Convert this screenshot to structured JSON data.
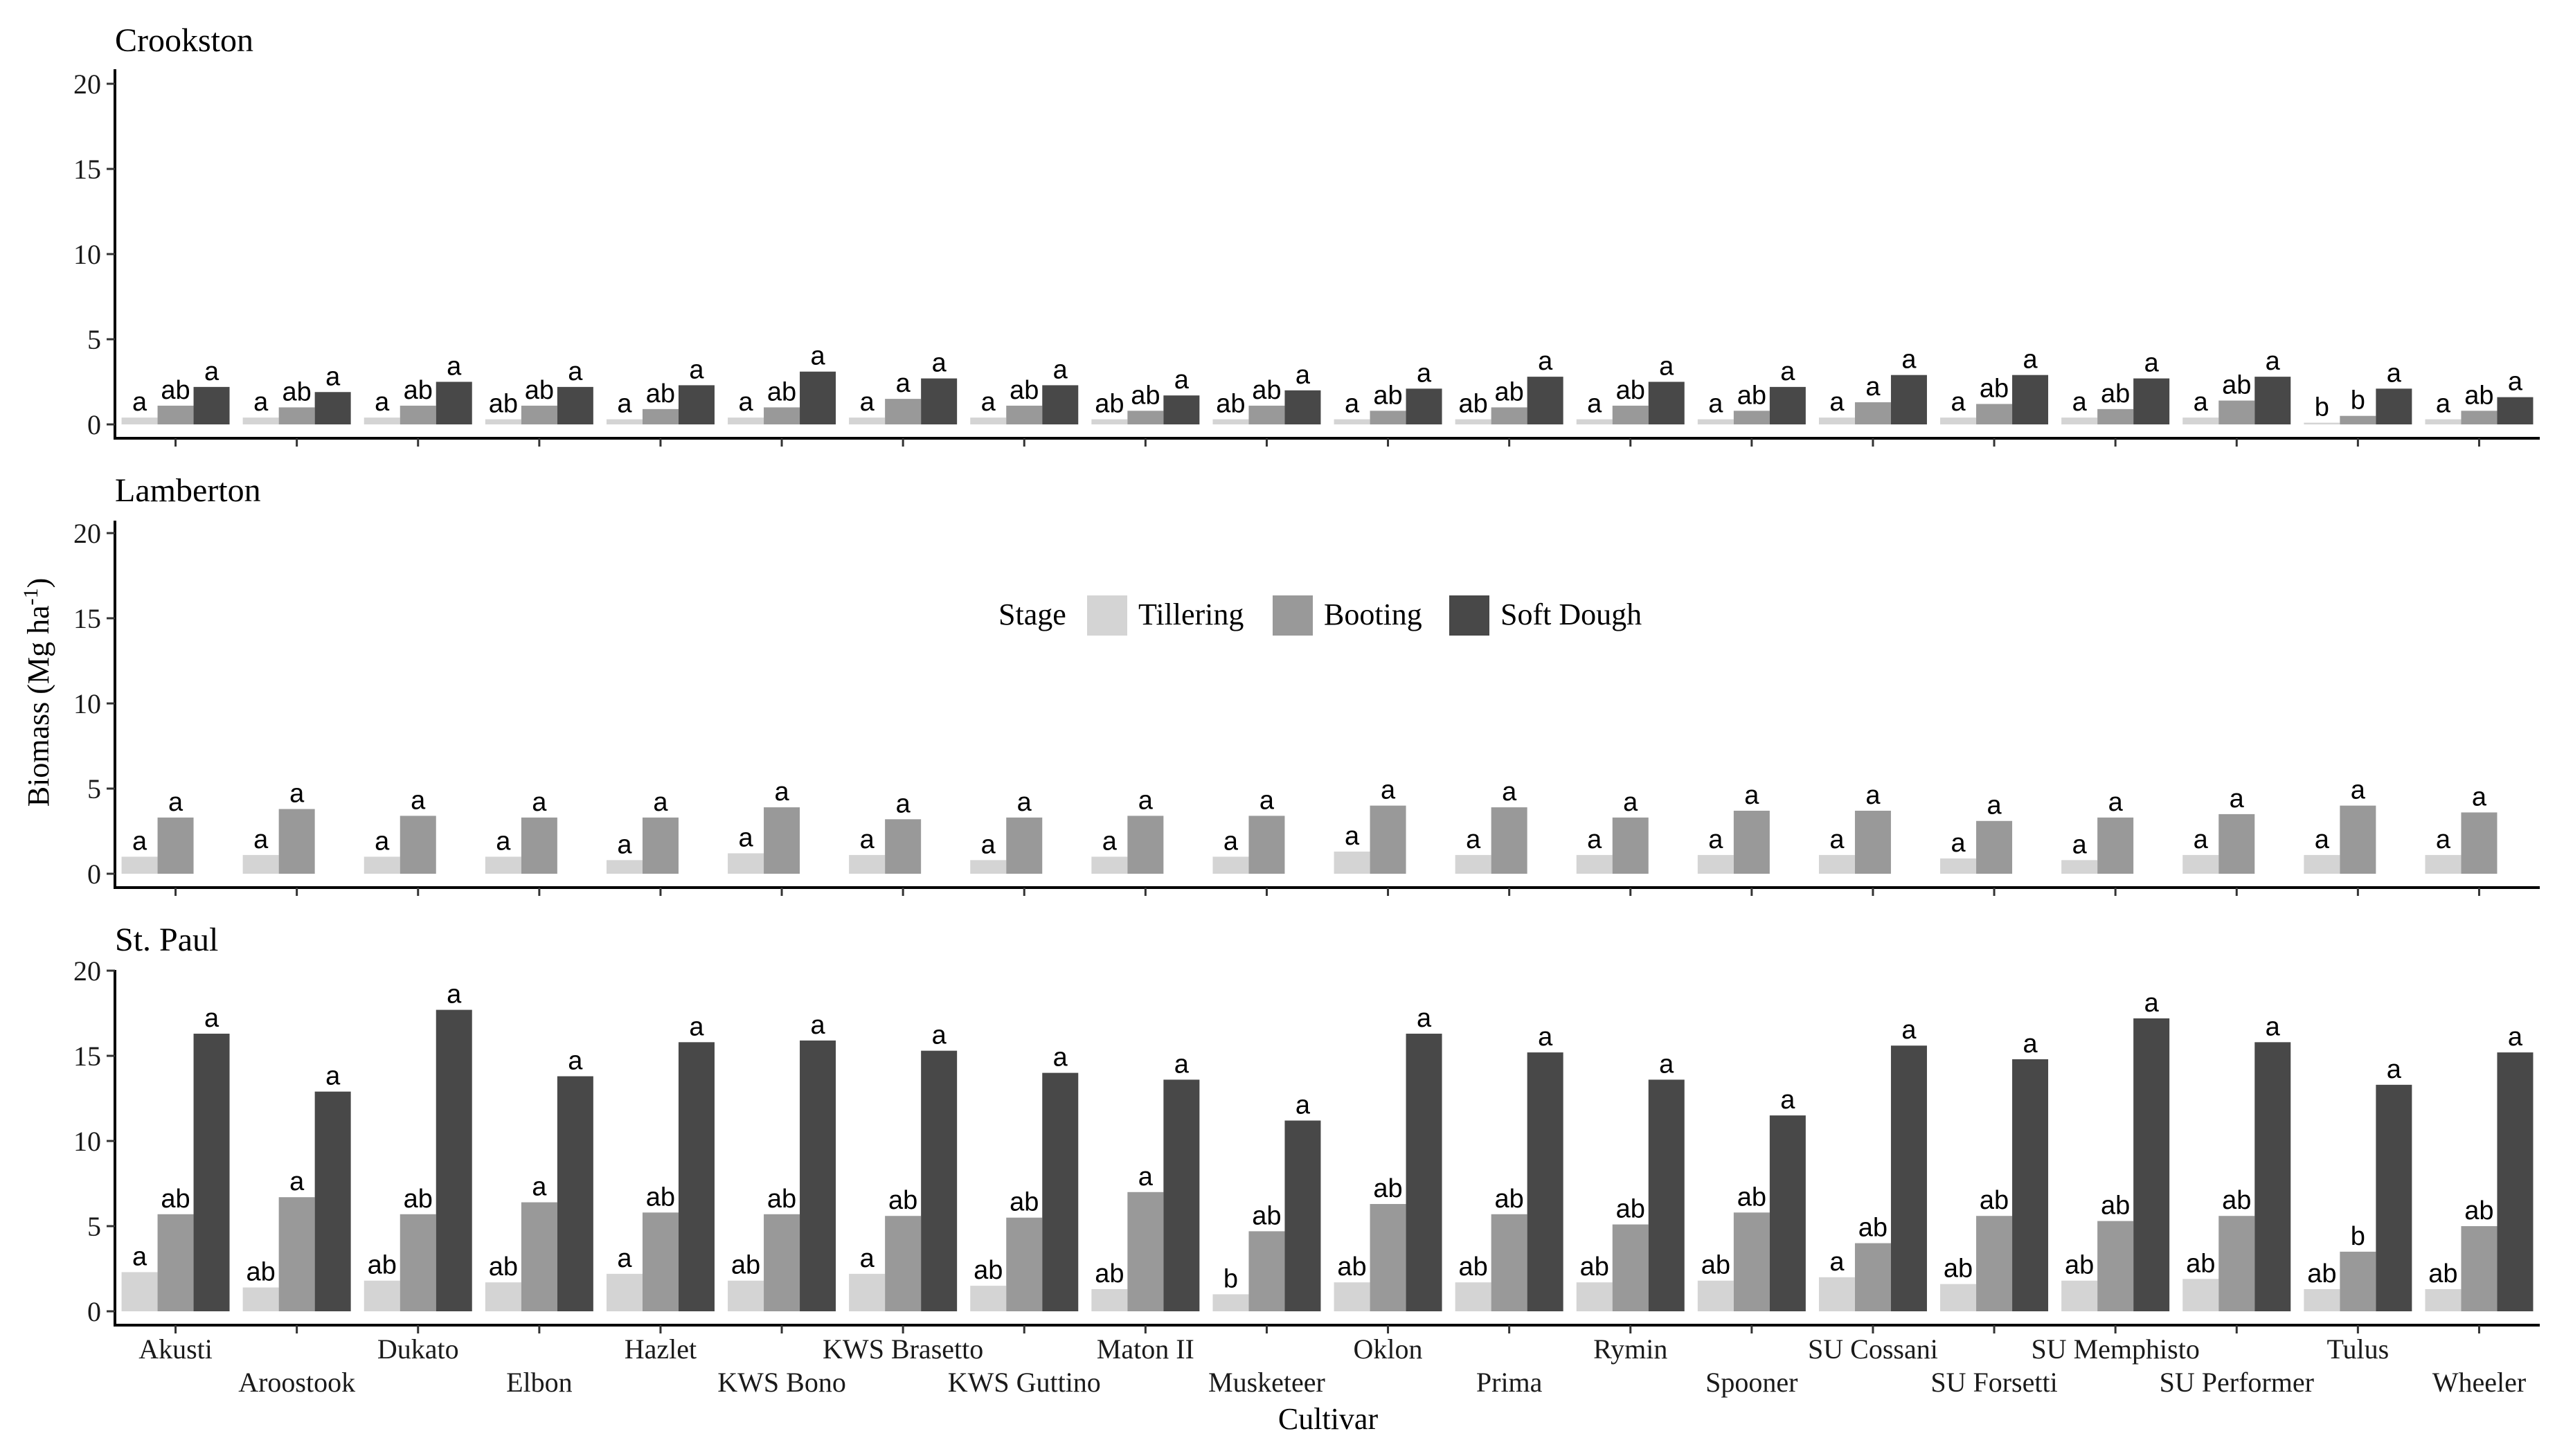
{
  "chart_data": {
    "type": "bar",
    "xlabel": "Cultivar",
    "ylabel": "Biomass (Mg ha",
    "ylabel_sup": "-1",
    "ylabel_tail": ")",
    "ylim": [
      0,
      21
    ],
    "yticks": [
      "0",
      "5",
      "10",
      "15",
      "20"
    ],
    "grid": false,
    "legend_placement": "center (Lamberton panel)",
    "legend_title": "Stage",
    "colors": {
      "Tillering": "#d4d4d4",
      "Booting": "#999999",
      "Soft Dough": "#484848"
    },
    "categories": [
      "Akusti",
      "Aroostook",
      "Dukato",
      "Elbon",
      "Hazlet",
      "KWS Bono",
      "KWS Brasetto",
      "KWS Guttino",
      "Maton II",
      "Musketeer",
      "Oklon",
      "Prima",
      "Rymin",
      "Spooner",
      "SU Cossani",
      "SU Forsetti",
      "SU Memphisto",
      "SU Performer",
      "Tulus",
      "Wheeler"
    ],
    "panels": [
      {
        "title": "Crookston",
        "series": [
          {
            "name": "Tillering",
            "values": [
              0.4,
              0.4,
              0.4,
              0.3,
              0.3,
              0.4,
              0.4,
              0.4,
              0.3,
              0.3,
              0.3,
              0.3,
              0.3,
              0.3,
              0.4,
              0.4,
              0.4,
              0.4,
              0.1,
              0.3
            ],
            "labels": [
              "a",
              "a",
              "a",
              "ab",
              "a",
              "a",
              "a",
              "a",
              "ab",
              "ab",
              "a",
              "ab",
              "a",
              "a",
              "a",
              "a",
              "a",
              "a",
              "b",
              "a"
            ]
          },
          {
            "name": "Booting",
            "values": [
              1.1,
              1.0,
              1.1,
              1.1,
              0.9,
              1.0,
              1.5,
              1.1,
              0.8,
              1.1,
              0.8,
              1.0,
              1.1,
              0.8,
              1.3,
              1.2,
              0.9,
              1.4,
              0.5,
              0.8
            ],
            "labels": [
              "ab",
              "ab",
              "ab",
              "ab",
              "ab",
              "ab",
              "a",
              "ab",
              "ab",
              "ab",
              "ab",
              "ab",
              "ab",
              "ab",
              "a",
              "ab",
              "ab",
              "ab",
              "b",
              "ab"
            ]
          },
          {
            "name": "Soft Dough",
            "values": [
              2.2,
              1.9,
              2.5,
              2.2,
              2.3,
              3.1,
              2.7,
              2.3,
              1.7,
              2.0,
              2.1,
              2.8,
              2.5,
              2.2,
              2.9,
              2.9,
              2.7,
              2.8,
              2.1,
              1.6
            ],
            "labels": [
              "a",
              "a",
              "a",
              "a",
              "a",
              "a",
              "a",
              "a",
              "a",
              "a",
              "a",
              "a",
              "a",
              "a",
              "a",
              "a",
              "a",
              "a",
              "a",
              "a"
            ]
          }
        ]
      },
      {
        "title": "Lamberton",
        "series": [
          {
            "name": "Tillering",
            "values": [
              1.0,
              1.1,
              1.0,
              1.0,
              0.8,
              1.2,
              1.1,
              0.8,
              1.0,
              1.0,
              1.3,
              1.1,
              1.1,
              1.1,
              1.1,
              0.9,
              0.8,
              1.1,
              1.1,
              1.1
            ],
            "labels": [
              "a",
              "a",
              "a",
              "a",
              "a",
              "a",
              "a",
              "a",
              "a",
              "a",
              "a",
              "a",
              "a",
              "a",
              "a",
              "a",
              "a",
              "a",
              "a",
              "a"
            ]
          },
          {
            "name": "Booting",
            "values": [
              3.3,
              3.8,
              3.4,
              3.3,
              3.3,
              3.9,
              3.2,
              3.3,
              3.4,
              3.4,
              4.0,
              3.9,
              3.3,
              3.7,
              3.7,
              3.1,
              3.3,
              3.5,
              4.0,
              3.6
            ],
            "labels": [
              "a",
              "a",
              "a",
              "a",
              "a",
              "a",
              "a",
              "a",
              "a",
              "a",
              "a",
              "a",
              "a",
              "a",
              "a",
              "a",
              "a",
              "a",
              "a",
              "a"
            ]
          }
        ]
      },
      {
        "title": "St. Paul",
        "series": [
          {
            "name": "Tillering",
            "values": [
              2.3,
              1.4,
              1.8,
              1.7,
              2.2,
              1.8,
              2.2,
              1.5,
              1.3,
              1.0,
              1.7,
              1.7,
              1.7,
              1.8,
              2.0,
              1.6,
              1.8,
              1.9,
              1.3,
              1.3
            ],
            "labels": [
              "a",
              "ab",
              "ab",
              "ab",
              "a",
              "ab",
              "a",
              "ab",
              "ab",
              "b",
              "ab",
              "ab",
              "ab",
              "ab",
              "a",
              "ab",
              "ab",
              "ab",
              "ab",
              "ab"
            ]
          },
          {
            "name": "Booting",
            "values": [
              5.7,
              6.7,
              5.7,
              6.4,
              5.8,
              5.7,
              5.6,
              5.5,
              7.0,
              4.7,
              6.3,
              5.7,
              5.1,
              5.8,
              4.0,
              5.6,
              5.3,
              5.6,
              3.5,
              5.0
            ],
            "labels": [
              "ab",
              "a",
              "ab",
              "a",
              "ab",
              "ab",
              "ab",
              "ab",
              "a",
              "ab",
              "ab",
              "ab",
              "ab",
              "ab",
              "ab",
              "ab",
              "ab",
              "ab",
              "b",
              "ab"
            ]
          },
          {
            "name": "Soft Dough",
            "values": [
              16.3,
              12.9,
              17.7,
              13.8,
              15.8,
              15.9,
              15.3,
              14.0,
              13.6,
              11.2,
              16.3,
              15.2,
              13.6,
              11.5,
              15.6,
              14.8,
              17.2,
              15.8,
              13.3,
              15.2
            ],
            "labels": [
              "a",
              "a",
              "a",
              "a",
              "a",
              "a",
              "a",
              "a",
              "a",
              "a",
              "a",
              "a",
              "a",
              "a",
              "a",
              "a",
              "a",
              "a",
              "a",
              "a"
            ]
          }
        ]
      }
    ]
  }
}
